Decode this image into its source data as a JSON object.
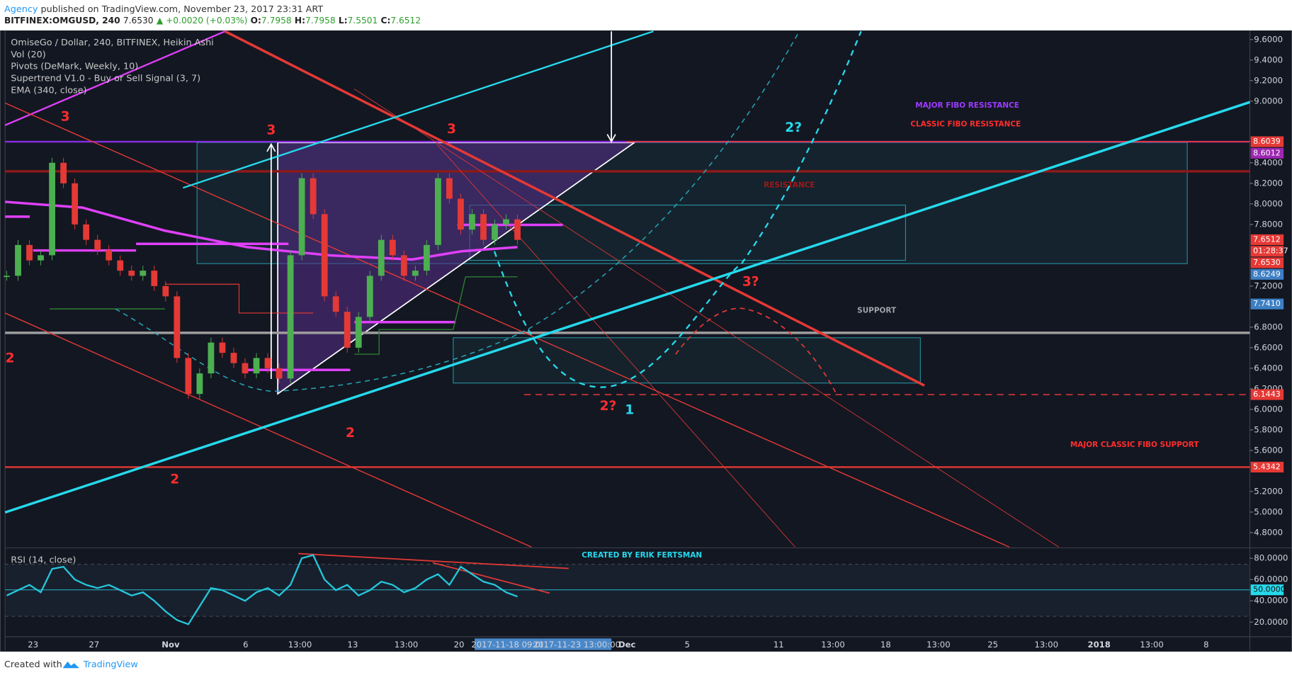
{
  "header": {
    "author": "Agency",
    "published": " published on TradingView.com, November 23, 2017 23:31 ART",
    "symbol": "BITFINEX:OMGUSD, 240",
    "last": "7.6530",
    "change": "▲ +0.0020 (+0.03%)",
    "ohlc": [
      {
        "label": "O:",
        "value": "7.7958"
      },
      {
        "label": "H:",
        "value": "7.7958"
      },
      {
        "label": "L:",
        "value": "7.5501"
      },
      {
        "label": "C:",
        "value": "7.6512"
      }
    ]
  },
  "legend": [
    "OmiseGo / Dollar, 240, BITFINEX, Heikin Ashi",
    "Vol (20)",
    "Pivots (DeMark, Weekly, 10)",
    "Supertrend V1.0 - Buy or Sell Signal (3, 7)",
    "EMA (340, close)"
  ],
  "chart_data": [
    {
      "type": "candles",
      "ylim": [
        4.66,
        9.68
      ],
      "yticks": [
        {
          "value": 9.6,
          "label": "9.6000"
        },
        {
          "value": 9.4,
          "label": "9.4000"
        },
        {
          "value": 9.2,
          "label": "9.2000"
        },
        {
          "value": 9.0,
          "label": "9.0000"
        },
        {
          "value": 8.4,
          "label": "8.4000"
        },
        {
          "value": 8.2,
          "label": "8.2000"
        },
        {
          "value": 8.0,
          "label": "8.0000"
        },
        {
          "value": 7.8,
          "label": "7.8000"
        },
        {
          "value": 7.2,
          "label": "7.2000"
        },
        {
          "value": 6.8,
          "label": "6.8000"
        },
        {
          "value": 6.6,
          "label": "6.6000"
        },
        {
          "value": 6.4,
          "label": "6.4000"
        },
        {
          "value": 6.2,
          "label": "6.2000"
        },
        {
          "value": 6.0,
          "label": "6.0000"
        },
        {
          "value": 5.8,
          "label": "5.8000"
        },
        {
          "value": 5.6,
          "label": "5.6000"
        },
        {
          "value": 5.2,
          "label": "5.2000"
        },
        {
          "value": 5.0,
          "label": "5.0000"
        },
        {
          "value": 4.8,
          "label": "4.8000"
        }
      ],
      "values": [
        7.3,
        7.6,
        7.45,
        7.5,
        8.4,
        8.2,
        7.8,
        7.65,
        7.55,
        7.45,
        7.35,
        7.3,
        7.35,
        7.2,
        7.1,
        6.5,
        6.15,
        6.35,
        6.65,
        6.55,
        6.45,
        6.35,
        6.5,
        6.4,
        6.3,
        7.5,
        8.25,
        7.9,
        7.1,
        6.95,
        6.6,
        6.9,
        7.3,
        7.65,
        7.5,
        7.3,
        7.35,
        7.6,
        8.25,
        8.05,
        7.75,
        7.9,
        7.65,
        7.8,
        7.85,
        7.65
      ],
      "up_color": "#4caf50",
      "down_color": "#e53935"
    },
    {
      "type": "line",
      "title": "RSI (14, close)",
      "ylim": [
        7,
        89
      ],
      "yticks": [
        {
          "value": 80,
          "label": "80.0000"
        },
        {
          "value": 60,
          "label": "60.0000"
        },
        {
          "value": 40,
          "label": "40.0000"
        },
        {
          "value": 20,
          "label": "20.0000"
        }
      ],
      "values": [
        45,
        50,
        55,
        48,
        70,
        72,
        60,
        55,
        52,
        55,
        50,
        45,
        48,
        40,
        30,
        22,
        18,
        35,
        52,
        50,
        45,
        40,
        48,
        52,
        45,
        55,
        80,
        83,
        60,
        50,
        55,
        45,
        50,
        58,
        55,
        48,
        52,
        60,
        65,
        55,
        72,
        65,
        58,
        55,
        48,
        44
      ],
      "color": "#26c6da"
    }
  ],
  "price_badges": [
    "8.6039",
    "8.6012",
    "7.6512",
    "01:28:37",
    "7.6530",
    "8.6249",
    "7.7410",
    "6.1443",
    "5.4342"
  ],
  "rsi_badge": "50.0000",
  "time_axis": [
    "23",
    "27",
    "Nov",
    "6",
    "13:00",
    "13",
    "13:00",
    "20",
    "2017-11-18 09:00",
    "2017-11-23 13:00:00",
    "Dec",
    "5",
    "11",
    "13:00",
    "18",
    "13:00",
    "25",
    "13:00",
    "2018",
    "13:00",
    "8"
  ],
  "wave_labels": [
    "3",
    "3",
    "3",
    "2",
    "2",
    "2",
    "2?",
    "1",
    "3?",
    "2?"
  ],
  "zone_labels": [
    "MAJOR FIBO RESISTANCE",
    "CLASSIC FIBO RESISTANCE",
    "RESISTANCE",
    "SUPPORT",
    "MAJOR CLASSIC FIBO SUPPORT",
    "CREATED BY ERIK FERTSMAN"
  ],
  "footer": {
    "created": "Created with",
    "brand": "TradingView"
  }
}
